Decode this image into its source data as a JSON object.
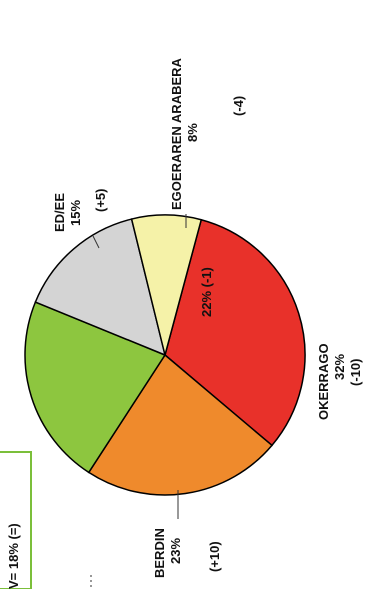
{
  "chart_data": {
    "type": "pie",
    "orientation": "rotated-90-ccw",
    "slices": [
      {
        "label": "OKERRAGO",
        "value": 32,
        "value_text": "32%",
        "change_text": "(-10)",
        "color": "#e8312a"
      },
      {
        "label": "BERDIN",
        "value": 23,
        "value_text": "23%",
        "change_text": "(+10)",
        "color": "#ef8a2c"
      },
      {
        "label": "",
        "value": 22,
        "value_text": "22%",
        "change_text": "(-1)",
        "color": "#8dc63f"
      },
      {
        "label": "ED/EE",
        "value": 15,
        "value_text": "15%",
        "change_text": "(+5)",
        "color": "#d4d4d4"
      },
      {
        "label": "EGOERAREN ARABERA",
        "value": 8,
        "value_text": "8%",
        "change_text": "(-4)",
        "color": "#f5f2a8"
      }
    ],
    "boxed_note": "V= 18% (=)",
    "box_color": "#7bbf3a"
  }
}
